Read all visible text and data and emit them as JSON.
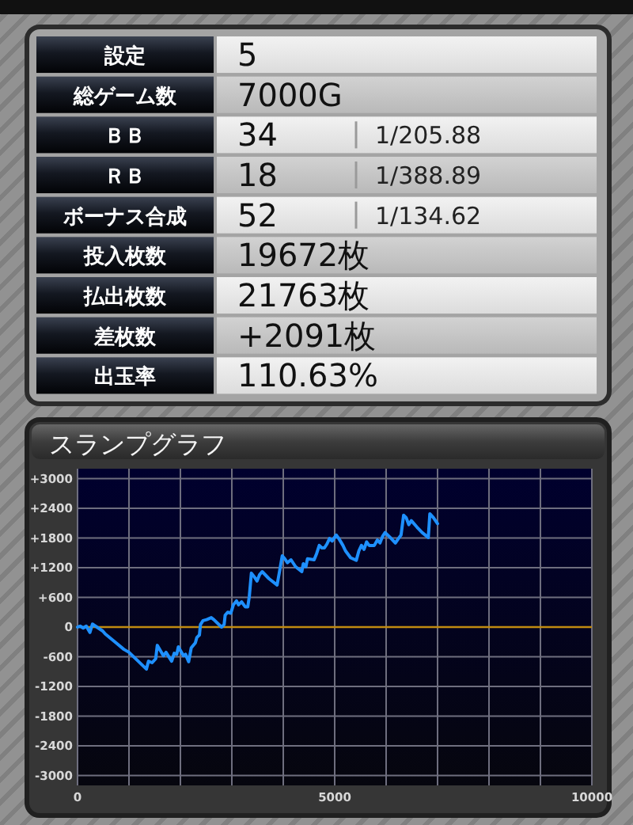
{
  "chart_data": [
    {
      "type": "other",
      "y_categories": [
        "設定",
        "総ゲーム数",
        "ＢＢ",
        "ＲＢ",
        "ボーナス合成",
        "投入枚数",
        "払出枚数",
        "差枚数",
        "出玉率"
      ],
      "cell_labels": [
        [
          "5",
          null
        ],
        [
          "7000G",
          null
        ],
        [
          "34",
          "1/205.88"
        ],
        [
          "18",
          "1/388.89"
        ],
        [
          "52",
          "1/134.62"
        ],
        [
          "19672枚",
          null
        ],
        [
          "21763枚",
          null
        ],
        [
          "+2091枚",
          null
        ],
        [
          "110.63%",
          null
        ]
      ]
    },
    {
      "type": "line",
      "title": "スランプグラフ",
      "color": "#1e90ff",
      "grid": true,
      "x": [
        0,
        50,
        110,
        170,
        240,
        290,
        490,
        540,
        750,
        900,
        1000,
        1160,
        1340,
        1380,
        1450,
        1520,
        1550,
        1670,
        1720,
        1830,
        1880,
        1930,
        1960,
        2060,
        2100,
        2160,
        2210,
        2290,
        2320,
        2370,
        2390,
        2440,
        2510,
        2600,
        2650,
        2800,
        2850,
        2870,
        2920,
        2980,
        3030,
        3090,
        3130,
        3190,
        3260,
        3310,
        3340,
        3380,
        3440,
        3490,
        3540,
        3590,
        3720,
        3880,
        3930,
        3980,
        4030,
        4080,
        4150,
        4240,
        4360,
        4390,
        4440,
        4470,
        4600,
        4650,
        4700,
        4750,
        4800,
        4850,
        4900,
        4950,
        5030,
        5080,
        5160,
        5210,
        5310,
        5420,
        5470,
        5520,
        5570,
        5620,
        5670,
        5770,
        5830,
        5880,
        5930,
        5980,
        6080,
        6180,
        6240,
        6290,
        6340,
        6390,
        6440,
        6490,
        6600,
        6700,
        6820,
        6850,
        6920,
        7000
      ],
      "values": [
        0,
        20,
        -20,
        20,
        -110,
        60,
        -80,
        -140,
        -320,
        -450,
        -510,
        -670,
        -850,
        -690,
        -720,
        -640,
        -370,
        -580,
        -510,
        -690,
        -530,
        -550,
        -400,
        -580,
        -550,
        -700,
        -420,
        -320,
        -210,
        -160,
        50,
        130,
        150,
        190,
        150,
        0,
        50,
        240,
        300,
        280,
        450,
        530,
        450,
        510,
        410,
        410,
        620,
        1090,
        1010,
        930,
        1060,
        1120,
        980,
        850,
        1140,
        1440,
        1380,
        1300,
        1360,
        1220,
        1120,
        1280,
        1220,
        1380,
        1360,
        1490,
        1650,
        1600,
        1600,
        1680,
        1790,
        1740,
        1860,
        1790,
        1650,
        1540,
        1400,
        1350,
        1540,
        1650,
        1570,
        1720,
        1650,
        1650,
        1760,
        1700,
        1830,
        1910,
        1810,
        1700,
        1790,
        1860,
        2260,
        2210,
        2070,
        2150,
        2020,
        1910,
        1810,
        2290,
        2210,
        2090
      ],
      "xlim": [
        0,
        10000
      ],
      "ylim": [
        -3200,
        3200
      ],
      "xticks": [
        0,
        {
          "value": 1000,
          "label": null
        },
        {
          "value": 2000,
          "label": null
        },
        {
          "value": 3000,
          "label": null
        },
        {
          "value": 4000,
          "label": null
        },
        5000,
        {
          "value": 6000,
          "label": null
        },
        {
          "value": 7000,
          "label": null
        },
        {
          "value": 8000,
          "label": null
        },
        {
          "value": 9000,
          "label": null
        },
        10000
      ],
      "yticks": [
        {
          "value": 3000,
          "label": "+3000"
        },
        {
          "value": 2400,
          "label": "+2400"
        },
        {
          "value": 1800,
          "label": "+1800"
        },
        {
          "value": 1200,
          "label": "+1200"
        },
        {
          "value": 600,
          "label": "+600"
        },
        0,
        -600,
        -1200,
        -1800,
        -2400,
        -3000
      ],
      "ref_lines": [
        {
          "axis": "y",
          "value": 0,
          "color": "#c08a10"
        }
      ]
    }
  ]
}
